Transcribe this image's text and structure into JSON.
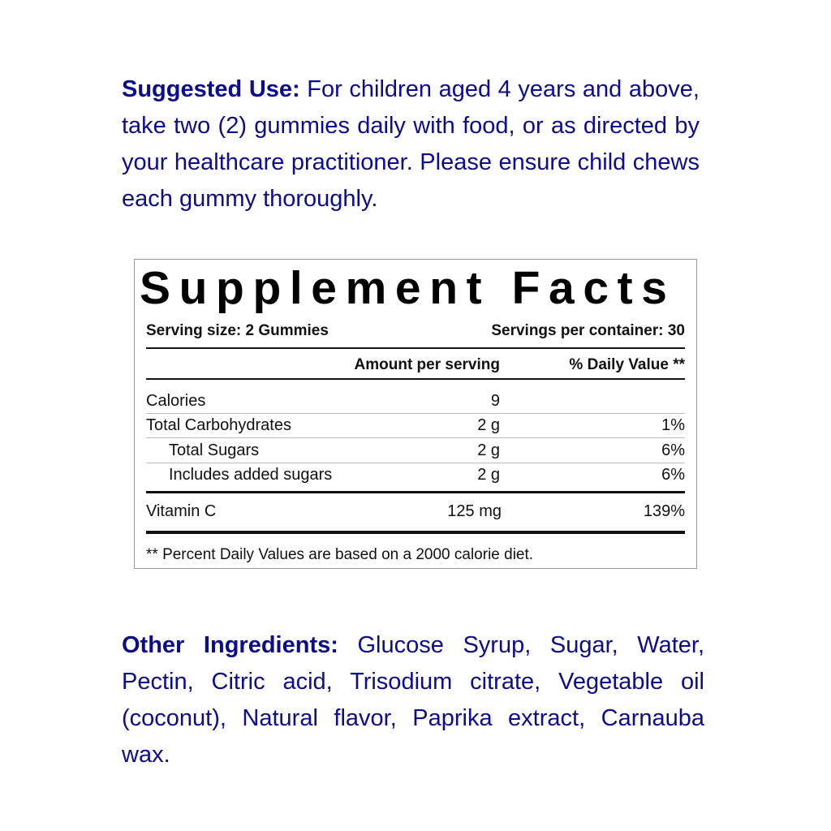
{
  "suggested_use": {
    "label": "Suggested Use:",
    "text": " For children aged 4 years and above, take two (2) gummies daily with food, or as directed by your healthcare practitioner. Please ensure child chews each gummy thoroughly."
  },
  "facts": {
    "title": "Supplement Facts",
    "serving_size": "Serving size: 2 Gummies",
    "servings_per_container": "Servings per container: 30",
    "col_amount": "Amount per serving",
    "col_dv": "% Daily Value **",
    "rows": [
      {
        "name": "Calories",
        "amount": "9",
        "dv": ""
      },
      {
        "name": "Total Carbohydrates",
        "amount": "2 g",
        "dv": "1%"
      },
      {
        "name": "Total Sugars",
        "amount": "2 g",
        "dv": "6%"
      },
      {
        "name": "Includes added sugars",
        "amount": "2 g",
        "dv": "6%"
      },
      {
        "name": "Vitamin C",
        "amount": "125 mg",
        "dv": "139%"
      }
    ],
    "footnote": "** Percent Daily Values are based on a 2000 calorie diet."
  },
  "other_ingredients": {
    "label": "Other Ingredients:",
    "text": " Glucose Syrup, Sugar, Water, Pectin, Citric acid, Trisodium citrate, Vegetable oil (coconut), Natural flavor, Paprika extract, Carnauba wax."
  }
}
